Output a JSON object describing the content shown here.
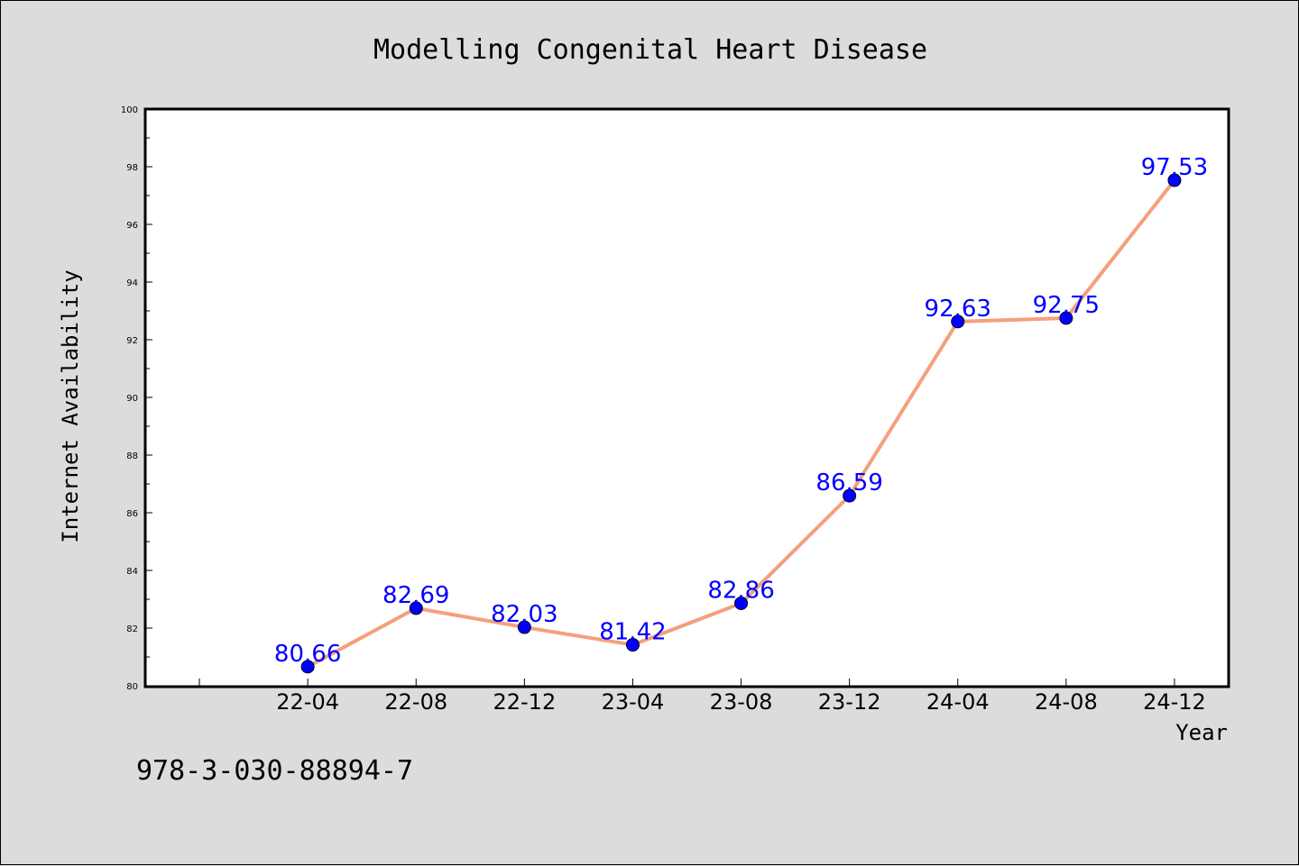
{
  "chart_data": {
    "type": "line",
    "title": "Modelling Congenital Heart Disease",
    "xlabel": "Year",
    "ylabel": "Internet Availability",
    "ylim": [
      80,
      100
    ],
    "yticks": [
      80,
      82,
      84,
      86,
      88,
      90,
      92,
      94,
      96,
      98,
      100
    ],
    "categories": [
      "22-04",
      "22-08",
      "22-12",
      "23-04",
      "23-08",
      "23-12",
      "24-04",
      "24-08",
      "24-12"
    ],
    "values": [
      80.66,
      82.69,
      82.03,
      81.42,
      82.86,
      86.59,
      92.63,
      92.75,
      97.53
    ],
    "data_labels": [
      "80.66",
      "82.69",
      "82.03",
      "81.42",
      "82.86",
      "86.59",
      "92.63",
      "92.75",
      "97.53"
    ],
    "line_color": "#f4a07c",
    "marker_color": "#0000ff",
    "label_color": "#0000ff",
    "grid": false,
    "legend": "none"
  },
  "footer": {
    "isbn": "978-3-030-88894-7"
  }
}
